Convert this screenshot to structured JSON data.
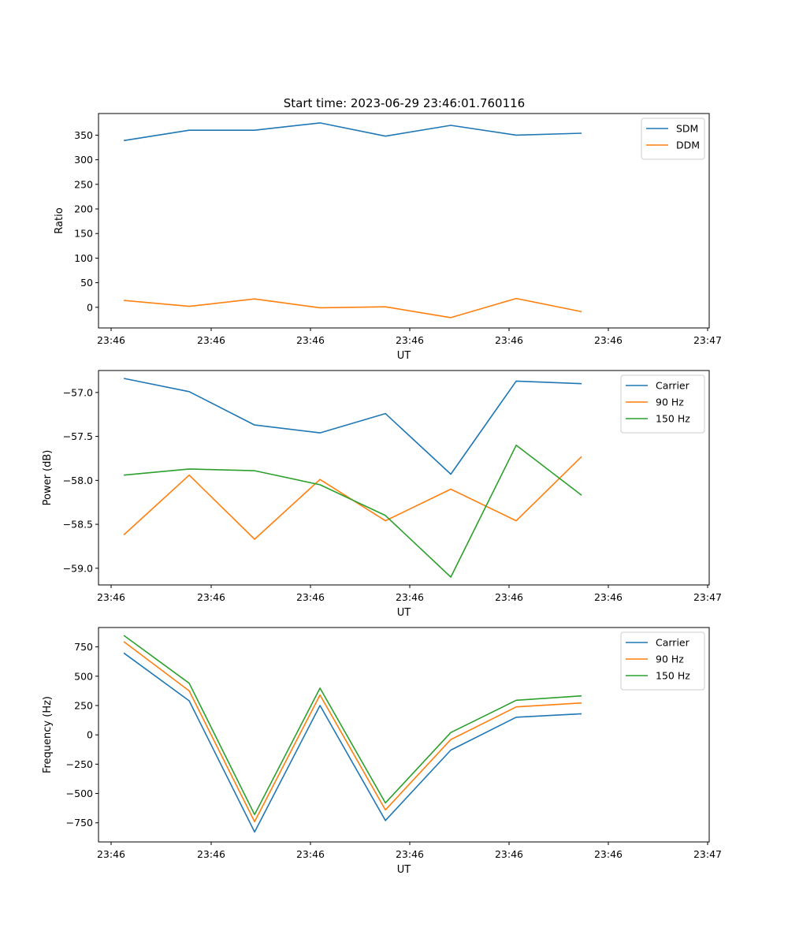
{
  "figure": {
    "title": "Start time: 2023-06-29 23:46:01.760116"
  },
  "chart_data": [
    {
      "type": "line",
      "xlabel": "UT",
      "ylabel": "Ratio",
      "x_tick_labels": [
        "23:46",
        "23:46",
        "23:46",
        "23:46",
        "23:46",
        "23:46",
        "23:47"
      ],
      "y_ticks": [
        0,
        50,
        100,
        150,
        200,
        250,
        300,
        350
      ],
      "ylim": [
        -42,
        394
      ],
      "grid": false,
      "legend": "top-right",
      "x": [
        1,
        2,
        3,
        4,
        5,
        6,
        7,
        8
      ],
      "series": [
        {
          "name": "SDM",
          "color": "#1f77b4",
          "values": [
            339,
            360,
            360,
            375,
            348,
            370,
            350,
            354
          ]
        },
        {
          "name": "DDM",
          "color": "#ff7f0e",
          "values": [
            14,
            2,
            17,
            -1,
            1,
            -21,
            18,
            -9
          ]
        }
      ]
    },
    {
      "type": "line",
      "xlabel": "UT",
      "ylabel": "Power (dB)",
      "x_tick_labels": [
        "23:46",
        "23:46",
        "23:46",
        "23:46",
        "23:46",
        "23:46",
        "23:47"
      ],
      "y_ticks": [
        -59.0,
        -58.5,
        -58.0,
        -57.5,
        -57.0
      ],
      "y_tick_labels": [
        "−59.0",
        "−58.5",
        "−58.0",
        "−57.5",
        "−57.0"
      ],
      "ylim": [
        -59.19,
        -56.75
      ],
      "grid": false,
      "legend": "top-right",
      "x": [
        1,
        2,
        3,
        4,
        5,
        6,
        7,
        8
      ],
      "series": [
        {
          "name": "Carrier",
          "color": "#1f77b4",
          "values": [
            -56.84,
            -56.99,
            -57.37,
            -57.46,
            -57.24,
            -57.93,
            -56.87,
            -56.9
          ]
        },
        {
          "name": "90 Hz",
          "color": "#ff7f0e",
          "values": [
            -58.62,
            -57.94,
            -58.67,
            -57.99,
            -58.46,
            -58.1,
            -58.46,
            -57.73
          ]
        },
        {
          "name": "150 Hz",
          "color": "#2ca02c",
          "values": [
            -57.94,
            -57.87,
            -57.89,
            -58.05,
            -58.4,
            -59.1,
            -57.6,
            -58.17
          ]
        }
      ]
    },
    {
      "type": "line",
      "xlabel": "UT",
      "ylabel": "Frequency (Hz)",
      "x_tick_labels": [
        "23:46",
        "23:46",
        "23:46",
        "23:46",
        "23:46",
        "23:46",
        "23:47"
      ],
      "y_ticks": [
        -750,
        -500,
        -250,
        0,
        250,
        500,
        750
      ],
      "y_tick_labels": [
        "−750",
        "−500",
        "−250",
        "0",
        "250",
        "500",
        "750"
      ],
      "ylim": [
        -913,
        915
      ],
      "grid": false,
      "legend": "top-right",
      "x": [
        1,
        2,
        3,
        4,
        5,
        6,
        7,
        8
      ],
      "series": [
        {
          "name": "Carrier",
          "color": "#1f77b4",
          "values": [
            698,
            290,
            -828,
            250,
            -730,
            -130,
            150,
            180
          ]
        },
        {
          "name": "90 Hz",
          "color": "#ff7f0e",
          "values": [
            795,
            375,
            -740,
            340,
            -640,
            -40,
            238,
            272
          ]
        },
        {
          "name": "150 Hz",
          "color": "#2ca02c",
          "values": [
            848,
            440,
            -680,
            398,
            -580,
            20,
            295,
            332
          ]
        }
      ]
    }
  ]
}
